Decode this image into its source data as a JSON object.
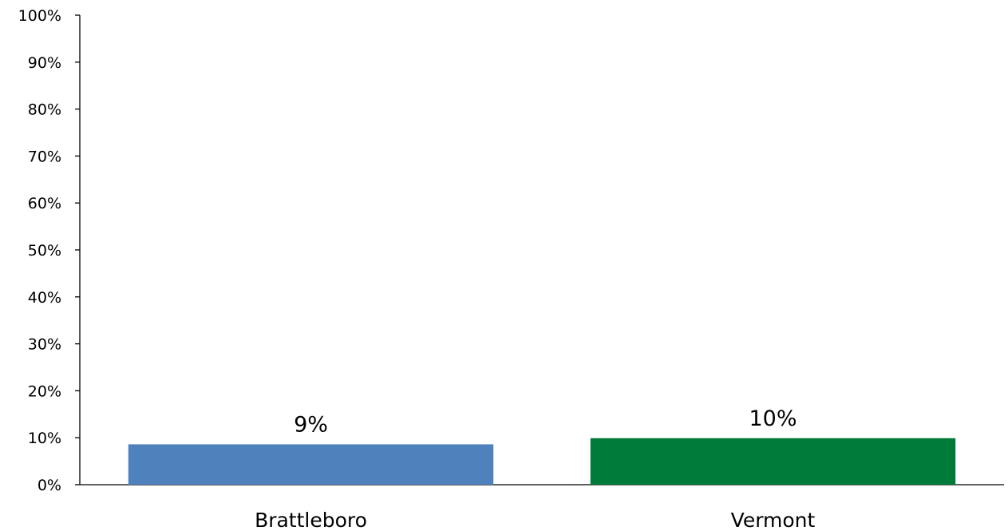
{
  "chart_data": {
    "type": "bar",
    "title": "",
    "xlabel": "",
    "ylabel": "",
    "categories": [
      "Brattleboro",
      "Vermont"
    ],
    "values": [
      8.6,
      9.9
    ],
    "data_labels": [
      "9%",
      "10%"
    ],
    "colors": [
      "#4F81BD",
      "#007A37"
    ],
    "ylim": [
      0,
      100
    ],
    "y_ticks": [
      0,
      10,
      20,
      30,
      40,
      50,
      60,
      70,
      80,
      90,
      100
    ],
    "y_tick_labels": [
      "0%",
      "10%",
      "20%",
      "30%",
      "40%",
      "50%",
      "60%",
      "70%",
      "80%",
      "90%",
      "100%"
    ],
    "grid": false,
    "legend": "none"
  }
}
